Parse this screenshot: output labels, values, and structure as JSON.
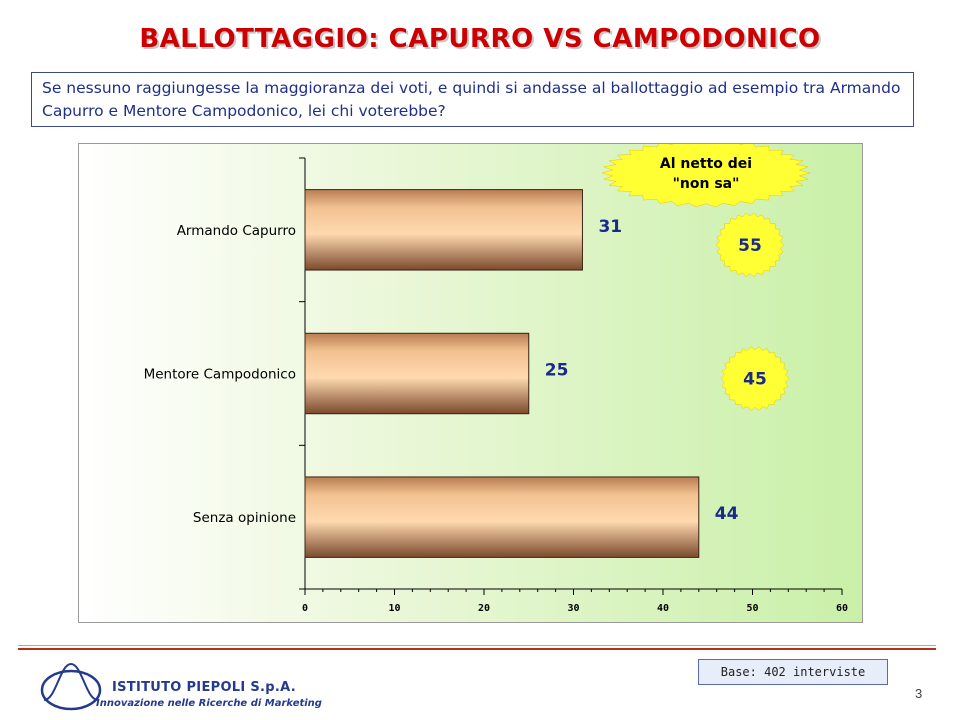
{
  "title": "BALLOTTAGGIO: CAPURRO VS CAMPODONICO",
  "question": "Se nessuno raggiungesse la maggioranza dei voti, e quindi si andasse al ballottaggio ad esempio tra Armando Capurro e Mentore Campodonico, lei chi voterebbe?",
  "chart_data": {
    "type": "bar",
    "orientation": "horizontal",
    "categories": [
      "Armando Capurro",
      "Mentore Campodonico",
      "Senza opinione"
    ],
    "values": [
      31,
      25,
      44
    ],
    "data_labels": [
      "31",
      "25",
      "44"
    ],
    "xlim": [
      0,
      60
    ],
    "xticks": [
      0,
      10,
      20,
      30,
      40,
      50,
      60
    ],
    "grid": false,
    "bar_color": "#f2c190",
    "annotations": {
      "net_label": "Al netto dei \"non sa\"",
      "net_values": [
        "55",
        "45"
      ]
    }
  },
  "footer": {
    "base": "Base: 402 interviste",
    "company": "ISTITUTO PIEPOLI S.p.A.",
    "tagline": "Innovazione nelle Ricerche di Marketing",
    "page_number": "3"
  },
  "colors": {
    "title": "#cc0000",
    "question_text": "#1f2f8a",
    "value_label": "#1a2a8a",
    "burst_fill": "#ffff33"
  }
}
